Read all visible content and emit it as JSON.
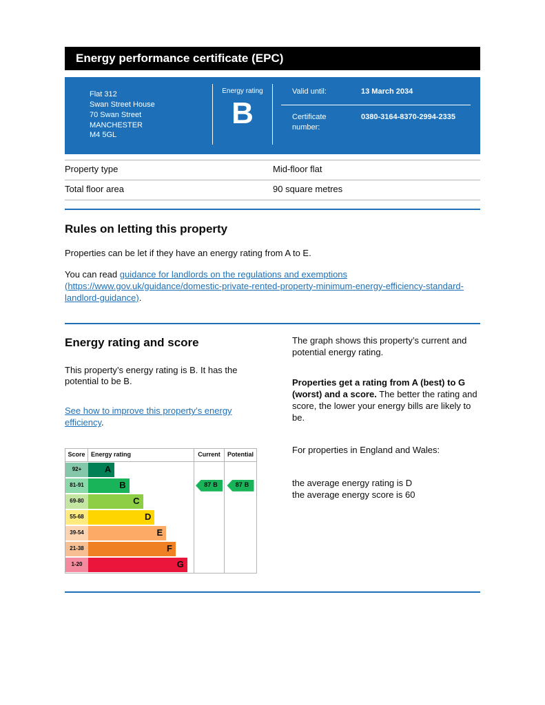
{
  "page": {
    "title": "Energy performance certificate (EPC)"
  },
  "banner": {
    "address": {
      "line1": "Flat 312",
      "line2": "Swan Street House",
      "line3": "70 Swan Street",
      "line4": "MANCHESTER",
      "line5": "M4 5GL"
    },
    "rating_label": "Energy rating",
    "rating_value": "B",
    "valid_until_label": "Valid until:",
    "valid_until_value": "13 March 2034",
    "certificate_label": "Certificate number:",
    "certificate_value": "0380-3164-8370-2994-2335"
  },
  "summary": {
    "rows": [
      {
        "label": "Property type",
        "value": "Mid-floor flat"
      },
      {
        "label": "Total floor area",
        "value": "90 square metres"
      }
    ]
  },
  "letting": {
    "heading": "Rules on letting this property",
    "para1": "Properties can be let if they have an energy rating from A to E.",
    "para2_prefix": "You can read ",
    "para2_link": "guidance for landlords on the regulations and exemptions (https://www.gov.uk/guidance/domestic-private-rented-property-minimum-energy-efficiency-standard-landlord-guidance)",
    "para2_suffix": "."
  },
  "rating_section": {
    "heading": "Energy rating and score",
    "intro": "This property’s energy rating is B. It has the potential to be B.",
    "improve_link": "See how to improve this property’s energy efficiency",
    "improve_suffix": "."
  },
  "explanation": {
    "para1": "The graph shows this property’s current and potential energy rating.",
    "para2_bold": "Properties get a rating from A (best) to G (worst) and a score.",
    "para2_rest": " The better the rating and score, the lower your energy bills are likely to be.",
    "para3": "For properties in England and Wales:",
    "para4": "the average energy rating is D",
    "para5": "the average energy score is 60"
  },
  "chart_data": {
    "type": "bar",
    "title": "Energy rating and score",
    "headers": {
      "score": "Score",
      "rating": "Energy rating",
      "current": "Current",
      "potential": "Potential"
    },
    "bands": [
      {
        "score": "92+",
        "letter": "A",
        "bar_color": "#008054",
        "score_color": "#84c7a9",
        "width_pct": 25
      },
      {
        "score": "81-91",
        "letter": "B",
        "bar_color": "#19b459",
        "score_color": "#8bd9ab",
        "width_pct": 39
      },
      {
        "score": "69-80",
        "letter": "C",
        "bar_color": "#8dce46",
        "score_color": "#c5e6a2",
        "width_pct": 52
      },
      {
        "score": "55-68",
        "letter": "D",
        "bar_color": "#ffd500",
        "score_color": "#ffea7f",
        "width_pct": 63
      },
      {
        "score": "39-54",
        "letter": "E",
        "bar_color": "#fcaa65",
        "score_color": "#fdd4b2",
        "width_pct": 74
      },
      {
        "score": "21-38",
        "letter": "F",
        "bar_color": "#ef8023",
        "score_color": "#f7bf91",
        "width_pct": 83
      },
      {
        "score": "1-20",
        "letter": "G",
        "bar_color": "#e9153b",
        "score_color": "#f48a9d",
        "width_pct": 94
      }
    ],
    "current": {
      "score": "87",
      "letter": "B",
      "band": "B",
      "color": "#19b459"
    },
    "potential": {
      "score": "87",
      "letter": "B",
      "band": "B",
      "color": "#19b459"
    }
  },
  "colors": {
    "banner_blue": "#1d70b8",
    "header_black": "#000000",
    "link_blue": "#1d70b8",
    "rule_blue": "#1d70b8",
    "border_grey": "#b1b4b6",
    "text": "#0b0c0c"
  }
}
